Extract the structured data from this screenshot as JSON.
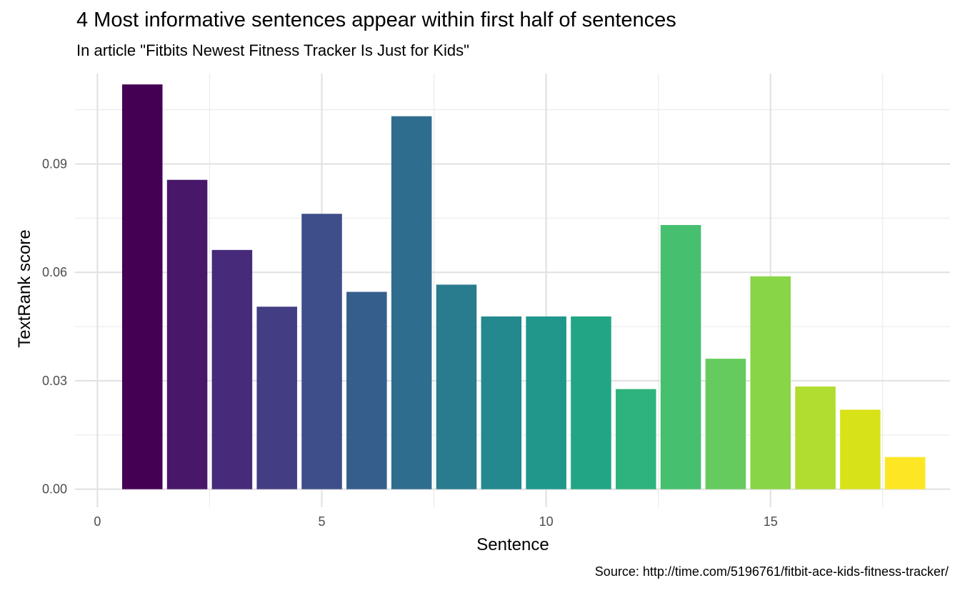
{
  "chart_data": {
    "type": "bar",
    "title": "4 Most informative sentences appear within first half of sentences",
    "subtitle": "In article \"Fitbits Newest Fitness Tracker Is Just for Kids\"",
    "caption": "Source: http://time.com/5196761/fitbit-ace-kids-fitness-tracker/",
    "xlabel": "Sentence",
    "ylabel": "TextRank score",
    "x": [
      1,
      2,
      3,
      4,
      5,
      6,
      7,
      8,
      9,
      10,
      11,
      12,
      13,
      14,
      15,
      16,
      17,
      18
    ],
    "values": [
      0.112,
      0.0856,
      0.0662,
      0.0505,
      0.0762,
      0.0546,
      0.1032,
      0.0566,
      0.0478,
      0.0478,
      0.0478,
      0.0277,
      0.0731,
      0.0361,
      0.0589,
      0.0284,
      0.022,
      0.0089
    ],
    "colors": [
      "#440154",
      "#481769",
      "#472a7a",
      "#433d84",
      "#3d4e8a",
      "#355e8d",
      "#2e6d8e",
      "#297b8e",
      "#23898e",
      "#1f978b",
      "#21a585",
      "#2eb37c",
      "#46c06f",
      "#65cb5e",
      "#89d548",
      "#b0dd2f",
      "#d8e219",
      "#fde725"
    ],
    "xticks": [
      "0",
      "5",
      "10",
      "15"
    ],
    "yticks": [
      "0.00",
      "0.03",
      "0.06",
      "0.09"
    ],
    "xlim": [
      -0.5,
      19.0
    ],
    "ylim": [
      -0.005,
      0.115
    ],
    "grid": true,
    "legend": "none"
  }
}
